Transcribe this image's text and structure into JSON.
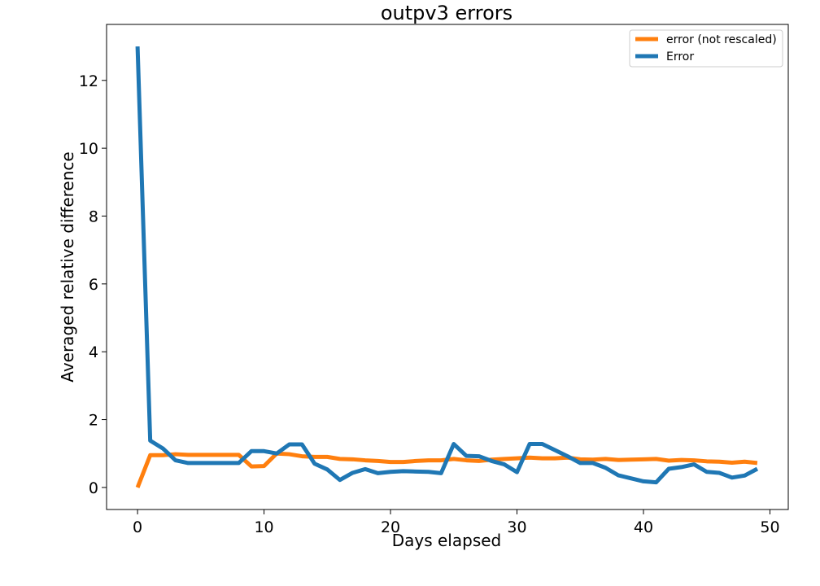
{
  "chart_data": {
    "type": "line",
    "title": "outpv3 errors",
    "xlabel": "Days elapsed",
    "ylabel": "Averaged relative difference",
    "xlim": [
      -2.45,
      51.45
    ],
    "ylim": [
      -0.65,
      13.65
    ],
    "xticks": [
      0,
      10,
      20,
      30,
      40,
      50
    ],
    "yticks": [
      0,
      2,
      4,
      6,
      8,
      10,
      12
    ],
    "grid": false,
    "legend_position": "top-right",
    "x": [
      0,
      1,
      2,
      3,
      4,
      5,
      6,
      7,
      8,
      9,
      10,
      11,
      12,
      13,
      14,
      15,
      16,
      17,
      18,
      19,
      20,
      21,
      22,
      23,
      24,
      25,
      26,
      27,
      28,
      29,
      30,
      31,
      32,
      33,
      34,
      35,
      36,
      37,
      38,
      39,
      40,
      41,
      42,
      43,
      44,
      45,
      46,
      47,
      48,
      49
    ],
    "series": [
      {
        "name": "error (not rescaled)",
        "color": "#ff7f0e",
        "values": [
          0.0,
          0.95,
          0.95,
          0.98,
          0.96,
          0.96,
          0.96,
          0.96,
          0.96,
          0.62,
          0.63,
          1.0,
          0.98,
          0.92,
          0.9,
          0.9,
          0.84,
          0.83,
          0.8,
          0.78,
          0.75,
          0.75,
          0.78,
          0.8,
          0.8,
          0.84,
          0.8,
          0.78,
          0.82,
          0.84,
          0.86,
          0.88,
          0.86,
          0.86,
          0.88,
          0.83,
          0.82,
          0.84,
          0.81,
          0.82,
          0.83,
          0.84,
          0.79,
          0.81,
          0.8,
          0.77,
          0.76,
          0.73,
          0.76,
          0.72
        ]
      },
      {
        "name": "Error",
        "color": "#1f77b4",
        "values": [
          13.0,
          1.38,
          1.15,
          0.8,
          0.72,
          0.72,
          0.72,
          0.72,
          0.72,
          1.07,
          1.07,
          1.0,
          1.27,
          1.27,
          0.7,
          0.53,
          0.22,
          0.43,
          0.54,
          0.42,
          0.46,
          0.48,
          0.47,
          0.46,
          0.42,
          1.28,
          0.93,
          0.92,
          0.78,
          0.68,
          0.45,
          1.28,
          1.28,
          1.1,
          0.92,
          0.72,
          0.72,
          0.58,
          0.36,
          0.27,
          0.18,
          0.15,
          0.55,
          0.6,
          0.68,
          0.46,
          0.43,
          0.29,
          0.35,
          0.55
        ]
      }
    ]
  }
}
